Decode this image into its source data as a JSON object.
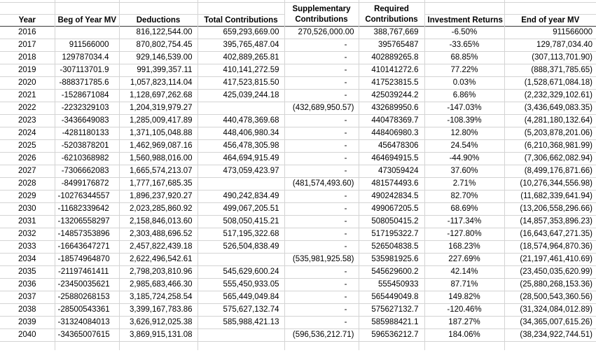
{
  "table": {
    "columns": [
      {
        "label": "Year"
      },
      {
        "label": "Beg of Year MV"
      },
      {
        "label": "Deductions"
      },
      {
        "label": "Total Contributions"
      },
      {
        "label_line1": "Supplementary",
        "label_line2": "Contributions"
      },
      {
        "label_line1": "Required",
        "label_line2": "Contributions"
      },
      {
        "label": "Investment Returns"
      },
      {
        "label": "End of year MV"
      }
    ],
    "rows": [
      [
        "2016",
        "",
        "816,122,544.00",
        "659,293,669.00",
        "270,526,000.00",
        "388,767,669",
        "-6.50%",
        "911566000"
      ],
      [
        "2017",
        "911566000",
        "870,802,754.45",
        "395,765,487.04",
        "-",
        "395765487",
        "-33.65%",
        "129,787,034.40"
      ],
      [
        "2018",
        "129787034.4",
        "929,146,539.00",
        "402,889,265.81",
        "-",
        "402889265.8",
        "68.85%",
        "(307,113,701.90)"
      ],
      [
        "2019",
        "-307113701.9",
        "991,399,357.11",
        "410,141,272.59",
        "-",
        "410141272.6",
        "77.22%",
        "(888,371,785.65)"
      ],
      [
        "2020",
        "-888371785.6",
        "1,057,823,114.04",
        "417,523,815.50",
        "-",
        "417523815.5",
        "0.03%",
        "(1,528,671,084.18)"
      ],
      [
        "2021",
        "-1528671084",
        "1,128,697,262.68",
        "425,039,244.18",
        "-",
        "425039244.2",
        "6.86%",
        "(2,232,329,102.61)"
      ],
      [
        "2022",
        "-2232329103",
        "1,204,319,979.27",
        "",
        "(432,689,950.57)",
        "432689950.6",
        "-147.03%",
        "(3,436,649,083.35)"
      ],
      [
        "2023",
        "-3436649083",
        "1,285,009,417.89",
        "440,478,369.68",
        "-",
        "440478369.7",
        "-108.39%",
        "(4,281,180,132.64)"
      ],
      [
        "2024",
        "-4281180133",
        "1,371,105,048.88",
        "448,406,980.34",
        "-",
        "448406980.3",
        "12.80%",
        "(5,203,878,201.06)"
      ],
      [
        "2025",
        "-5203878201",
        "1,462,969,087.16",
        "456,478,305.98",
        "-",
        "456478306",
        "24.54%",
        "(6,210,368,981.99)"
      ],
      [
        "2026",
        "-6210368982",
        "1,560,988,016.00",
        "464,694,915.49",
        "-",
        "464694915.5",
        "-44.90%",
        "(7,306,662,082.94)"
      ],
      [
        "2027",
        "-7306662083",
        "1,665,574,213.07",
        "473,059,423.97",
        "-",
        "473059424",
        "37.60%",
        "(8,499,176,871.66)"
      ],
      [
        "2028",
        "-8499176872",
        "1,777,167,685.35",
        "",
        "(481,574,493.60)",
        "481574493.6",
        "2.71%",
        "(10,276,344,556.98)"
      ],
      [
        "2029",
        "-10276344557",
        "1,896,237,920.27",
        "490,242,834.49",
        "-",
        "490242834.5",
        "82.70%",
        "(11,682,339,641.94)"
      ],
      [
        "2030",
        "-11682339642",
        "2,023,285,860.92",
        "499,067,205.51",
        "-",
        "499067205.5",
        "68.69%",
        "(13,206,558,296.66)"
      ],
      [
        "2031",
        "-13206558297",
        "2,158,846,013.60",
        "508,050,415.21",
        "-",
        "508050415.2",
        "-117.34%",
        "(14,857,353,896.23)"
      ],
      [
        "2032",
        "-14857353896",
        "2,303,488,696.52",
        "517,195,322.68",
        "-",
        "517195322.7",
        "-127.80%",
        "(16,643,647,271.35)"
      ],
      [
        "2033",
        "-16643647271",
        "2,457,822,439.18",
        "526,504,838.49",
        "-",
        "526504838.5",
        "168.23%",
        "(18,574,964,870.36)"
      ],
      [
        "2034",
        "-18574964870",
        "2,622,496,542.61",
        "",
        "(535,981,925.58)",
        "535981925.6",
        "227.69%",
        "(21,197,461,410.69)"
      ],
      [
        "2035",
        "-21197461411",
        "2,798,203,810.96",
        "545,629,600.24",
        "-",
        "545629600.2",
        "42.14%",
        "(23,450,035,620.99)"
      ],
      [
        "2036",
        "-23450035621",
        "2,985,683,466.30",
        "555,450,933.05",
        "-",
        "555450933",
        "87.71%",
        "(25,880,268,153.36)"
      ],
      [
        "2037",
        "-25880268153",
        "3,185,724,258.54",
        "565,449,049.84",
        "-",
        "565449049.8",
        "149.82%",
        "(28,500,543,360.56)"
      ],
      [
        "2038",
        "-28500543361",
        "3,399,167,783.86",
        "575,627,132.74",
        "-",
        "575627132.7",
        "-120.46%",
        "(31,324,084,012.89)"
      ],
      [
        "2039",
        "-31324084013",
        "3,626,912,025.38",
        "585,988,421.13",
        "-",
        "585988421.1",
        "187.27%",
        "(34,365,007,615.26)"
      ],
      [
        "2040",
        "-34365007615",
        "3,869,915,131.08",
        "",
        "(596,536,212.71)",
        "596536212.7",
        "184.06%",
        "(38,234,922,744.51)"
      ]
    ]
  },
  "colors": {
    "gridline": "#d4d4d4",
    "header_border": "#3b3b3b",
    "text": "#000000",
    "background": "#ffffff"
  }
}
